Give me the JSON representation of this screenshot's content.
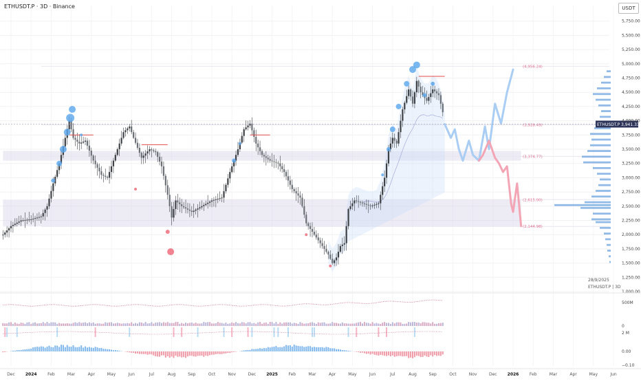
{
  "header": {
    "title": "ETHUSDT.P · 3D · Binance",
    "currency": "USDT"
  },
  "info": {
    "date": "28/9/2025",
    "symbol_line": "ETHUSDT.P | 3D"
  },
  "price_tag": {
    "symbol": "ETHUSDT.P",
    "price": "3,941.33"
  },
  "levels": [
    {
      "price": 4956.24,
      "label": "(4,956.24)"
    },
    {
      "price": 3928.49,
      "label": "(3,928.49)"
    },
    {
      "price": 3374.77,
      "label": "(3,374.77)"
    },
    {
      "price": 2615.0,
      "label": "(2,615.00)"
    },
    {
      "price": 2144.98,
      "label": "(2,144.98)"
    }
  ],
  "panes": {
    "volume_label": "500M",
    "pane2_zero": "0",
    "pane2_label": "2 M",
    "pane3_zero": "0.00",
    "pane3_neg": "−0.10"
  },
  "colors": {
    "up": "#3d4045",
    "bubble_blue": "#5aa6ec",
    "bubble_red": "#ef6f7d",
    "resistance": "#e04b4b",
    "zone": "#d7d3e6",
    "proj_blue": "#a9cdf3",
    "proj_red": "#f3a5b5",
    "hist_pos": "#7fb7ec",
    "hist_neg": "#ef9aa6"
  },
  "chart_data": {
    "type": "candlestick",
    "symbol": "ETHUSDT.P",
    "interval": "3D",
    "exchange": "Binance",
    "ylim": [
      1000,
      6000
    ],
    "y_ticks": [
      "1,000.00",
      "1,250.00",
      "1,500.00",
      "1,750.00",
      "2,000.00",
      "2,250.00",
      "2,500.00",
      "2,750.00",
      "3,000.00",
      "3,250.00",
      "3,500.00",
      "3,750.00",
      "4,000.00",
      "4,250.00",
      "4,500.00",
      "4,750.00",
      "5,000.00",
      "5,250.00",
      "5,500.00",
      "5,750.00"
    ],
    "x_ticks": [
      "Dec",
      "2024",
      "Feb",
      "Mar",
      "Apr",
      "May",
      "Jun",
      "Jul",
      "Aug",
      "Sep",
      "Oct",
      "Nov",
      "Dec",
      "2025",
      "Feb",
      "Mar",
      "Apr",
      "May",
      "Jun",
      "Jul",
      "Aug",
      "Sep",
      "Oct",
      "Nov",
      "Dec",
      "2026",
      "Feb",
      "Mar",
      "Apr",
      "May",
      "Jun"
    ],
    "x_tick_values": [
      -0.5,
      0.5,
      1.5,
      2.5,
      3.5,
      4.5,
      5.5,
      6.5,
      7.5,
      8.5,
      9.5,
      10.5,
      11.5,
      12.5,
      13.5,
      14.5,
      15.5,
      16.5,
      17.5,
      18.5,
      19.5,
      20.5,
      21.5,
      22.5,
      23.5,
      24.5,
      25.5,
      26.5,
      27.5,
      28.5,
      29.5
    ],
    "x_range": [
      -0.9,
      29.8
    ],
    "price_path": [
      [
        -0.9,
        2000
      ],
      [
        -0.5,
        2150
      ],
      [
        0.0,
        2250
      ],
      [
        0.5,
        2270
      ],
      [
        1.0,
        2320
      ],
      [
        1.3,
        2500
      ],
      [
        1.6,
        2900
      ],
      [
        1.9,
        3250
      ],
      [
        2.2,
        3700
      ],
      [
        2.4,
        4000
      ],
      [
        2.6,
        3700
      ],
      [
        2.9,
        3600
      ],
      [
        3.2,
        3650
      ],
      [
        3.6,
        3300
      ],
      [
        4.0,
        3050
      ],
      [
        4.3,
        3000
      ],
      [
        4.7,
        3400
      ],
      [
        5.1,
        3800
      ],
      [
        5.4,
        3900
      ],
      [
        5.6,
        3700
      ],
      [
        6.0,
        3350
      ],
      [
        6.4,
        3500
      ],
      [
        6.7,
        3450
      ],
      [
        7.0,
        3200
      ],
      [
        7.3,
        2700
      ],
      [
        7.5,
        2300
      ],
      [
        7.7,
        2600
      ],
      [
        8.0,
        2500
      ],
      [
        8.5,
        2400
      ],
      [
        9.0,
        2500
      ],
      [
        9.5,
        2600
      ],
      [
        10.0,
        2650
      ],
      [
        10.4,
        3100
      ],
      [
        10.8,
        3500
      ],
      [
        11.1,
        3850
      ],
      [
        11.4,
        3950
      ],
      [
        11.7,
        3600
      ],
      [
        12.0,
        3400
      ],
      [
        12.4,
        3300
      ],
      [
        12.8,
        3250
      ],
      [
        13.1,
        3100
      ],
      [
        13.5,
        2800
      ],
      [
        13.9,
        2650
      ],
      [
        14.2,
        2200
      ],
      [
        14.5,
        2050
      ],
      [
        14.8,
        1900
      ],
      [
        15.0,
        1800
      ],
      [
        15.3,
        1650
      ],
      [
        15.5,
        1500
      ],
      [
        15.7,
        1600
      ],
      [
        15.9,
        1800
      ],
      [
        16.1,
        1850
      ],
      [
        16.3,
        2450
      ],
      [
        16.6,
        2600
      ],
      [
        17.0,
        2550
      ],
      [
        17.4,
        2500
      ],
      [
        17.8,
        2550
      ],
      [
        18.1,
        3000
      ],
      [
        18.3,
        3500
      ],
      [
        18.5,
        3700
      ],
      [
        18.7,
        3600
      ],
      [
        19.0,
        4200
      ],
      [
        19.3,
        4550
      ],
      [
        19.5,
        4300
      ],
      [
        19.7,
        4700
      ],
      [
        19.9,
        4500
      ],
      [
        20.2,
        4350
      ],
      [
        20.5,
        4550
      ],
      [
        20.8,
        4450
      ],
      [
        21.0,
        4150
      ],
      [
        21.1,
        3941
      ]
    ],
    "volume_profile": [
      [
        1500,
        2
      ],
      [
        1600,
        3
      ],
      [
        1700,
        5
      ],
      [
        1800,
        6
      ],
      [
        1900,
        8
      ],
      [
        2000,
        10
      ],
      [
        2100,
        16
      ],
      [
        2200,
        22
      ],
      [
        2250,
        28
      ],
      [
        2350,
        26
      ],
      [
        2450,
        44
      ],
      [
        2500,
        82
      ],
      [
        2550,
        38
      ],
      [
        2650,
        28
      ],
      [
        2750,
        22
      ],
      [
        2850,
        18
      ],
      [
        2950,
        16
      ],
      [
        3050,
        20
      ],
      [
        3150,
        26
      ],
      [
        3250,
        40
      ],
      [
        3350,
        42
      ],
      [
        3450,
        34
      ],
      [
        3550,
        30
      ],
      [
        3650,
        28
      ],
      [
        3750,
        30
      ],
      [
        3850,
        24
      ],
      [
        3950,
        20
      ],
      [
        4050,
        16
      ],
      [
        4150,
        14
      ],
      [
        4250,
        18
      ],
      [
        4350,
        22
      ],
      [
        4450,
        26
      ],
      [
        4550,
        20
      ],
      [
        4650,
        14
      ],
      [
        4750,
        10
      ],
      [
        4850,
        6
      ]
    ],
    "projections": [
      {
        "color": "blue",
        "points": [
          [
            21.1,
            3941
          ],
          [
            21.4,
            3700
          ],
          [
            21.6,
            3850
          ],
          [
            21.8,
            3500
          ],
          [
            22.0,
            3300
          ],
          [
            22.3,
            3650
          ],
          [
            22.5,
            3400
          ],
          [
            22.8,
            3300
          ],
          [
            23.1,
            3900
          ],
          [
            23.3,
            3500
          ],
          [
            23.6,
            4300
          ],
          [
            23.9,
            3950
          ],
          [
            24.2,
            4500
          ],
          [
            24.5,
            4900
          ]
        ]
      },
      {
        "color": "red",
        "points": [
          [
            22.8,
            3300
          ],
          [
            23.0,
            3400
          ],
          [
            23.3,
            3650
          ],
          [
            23.6,
            3350
          ],
          [
            23.8,
            3250
          ],
          [
            24.0,
            3100
          ],
          [
            24.2,
            3200
          ],
          [
            24.4,
            2550
          ],
          [
            24.5,
            2400
          ],
          [
            24.7,
            2900
          ],
          [
            24.9,
            2150
          ]
        ]
      }
    ],
    "resistances": [
      {
        "x": [
          2.4,
          3.6
        ],
        "price": 3750
      },
      {
        "x": [
          6.0,
          7.3
        ],
        "price": 3580
      },
      {
        "x": [
          11.4,
          12.4
        ],
        "price": 3750
      },
      {
        "x": [
          19.8,
          21.1
        ],
        "price": 4780
      }
    ],
    "zones": [
      {
        "x": [
          -0.9,
          24.9
        ],
        "from": 2144.98,
        "to": 2615.0
      },
      {
        "x": [
          -0.9,
          24.9
        ],
        "from": 3300,
        "to": 3470
      }
    ]
  }
}
